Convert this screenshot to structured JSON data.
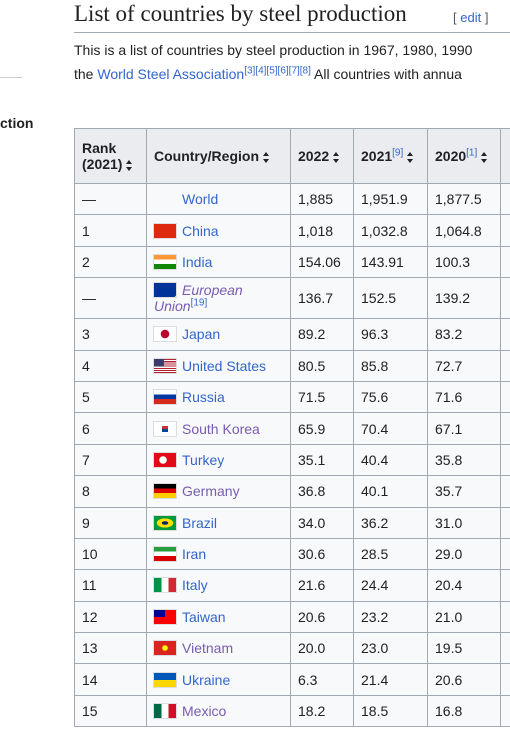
{
  "header": {
    "title": "List of countries by steel production",
    "edit": "edit",
    "sidebar_fragment": "ction"
  },
  "intro": {
    "line1": "This is a list of countries by steel production in 1967, 1980, 1990",
    "line2_start": "the ",
    "line2_link": "World Steel Association",
    "line2_refs": "[3][4][5][6][7][8]",
    "line2_end": " All countries with annua"
  },
  "table": {
    "headers": [
      "Rank (2021)",
      "Country/Region",
      "2022",
      "2021",
      "2020"
    ],
    "header_notes": {
      "3": "[9]",
      "4": "[1]"
    },
    "rows": [
      {
        "cells": [
          "—",
          "World",
          "1,885",
          "1,951.9",
          "1,877.5"
        ]
      },
      {
        "cells": [
          "1",
          "China",
          "1,018",
          "1,032.8",
          "1,064.8"
        ]
      },
      {
        "cells": [
          "2",
          "India",
          "154.06",
          "143.91",
          "100.3"
        ]
      },
      {
        "cells": [
          "—",
          "European Union",
          "136.7",
          "152.5",
          "139.2"
        ],
        "note": "[19]",
        "visited": true,
        "italic": true
      },
      {
        "cells": [
          "3",
          "Japan",
          "89.2",
          "96.3",
          "83.2"
        ]
      },
      {
        "cells": [
          "4",
          "United States",
          "80.5",
          "85.8",
          "72.7"
        ]
      },
      {
        "cells": [
          "5",
          "Russia",
          "71.5",
          "75.6",
          "71.6"
        ]
      },
      {
        "cells": [
          "6",
          "South Korea",
          "65.9",
          "70.4",
          "67.1"
        ],
        "visited": true
      },
      {
        "cells": [
          "7",
          "Turkey",
          "35.1",
          "40.4",
          "35.8"
        ]
      },
      {
        "cells": [
          "8",
          "Germany",
          "36.8",
          "40.1",
          "35.7"
        ],
        "visited": true
      },
      {
        "cells": [
          "9",
          "Brazil",
          "34.0",
          "36.2",
          "31.0"
        ]
      },
      {
        "cells": [
          "10",
          "Iran",
          "30.6",
          "28.5",
          "29.0"
        ]
      },
      {
        "cells": [
          "11",
          "Italy",
          "21.6",
          "24.4",
          "20.4"
        ]
      },
      {
        "cells": [
          "12",
          "Taiwan",
          "20.6",
          "23.2",
          "21.0"
        ]
      },
      {
        "cells": [
          "13",
          "Vietnam",
          "20.0",
          "23.0",
          "19.5"
        ],
        "visited": true
      },
      {
        "cells": [
          "14",
          "Ukraine",
          "6.3",
          "21.4",
          "20.6"
        ]
      },
      {
        "cells": [
          "15",
          "Mexico",
          "18.2",
          "18.5",
          "16.8"
        ],
        "visited": true
      }
    ]
  }
}
